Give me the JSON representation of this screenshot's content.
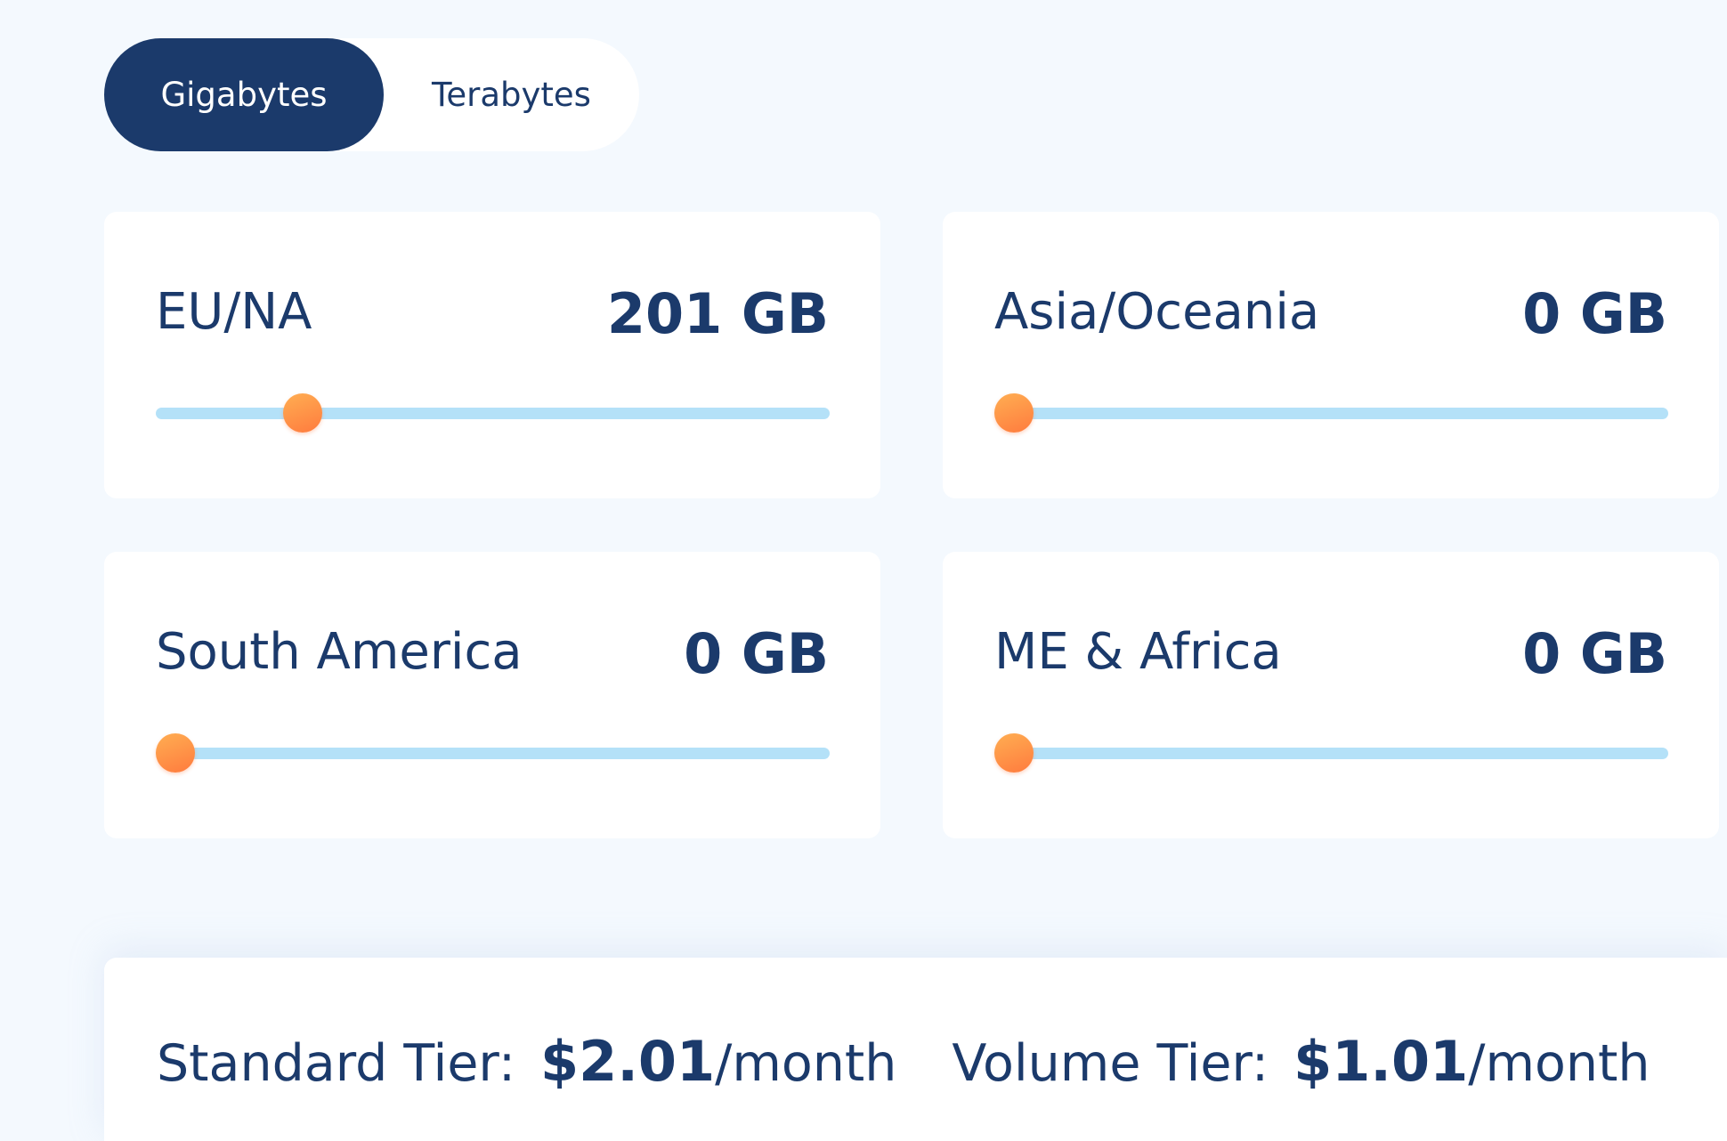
{
  "toggle": {
    "options": [
      "Gigabytes",
      "Terabytes"
    ],
    "selected": 0
  },
  "slider_range": [
    0,
    1000
  ],
  "cards": [
    {
      "label": "EU/NA",
      "value": 201,
      "value_label": "201 GB"
    },
    {
      "label": "Asia/Oceania",
      "value": 0,
      "value_label": "0 GB"
    },
    {
      "label": "South America",
      "value": 0,
      "value_label": "0 GB"
    },
    {
      "label": "ME & Africa",
      "value": 0,
      "value_label": "0 GB"
    }
  ],
  "pricing": [
    {
      "label": "Standard Tier:",
      "price": "$2.01",
      "period": "/month"
    },
    {
      "label": "Volume Tier:",
      "price": "$1.01",
      "period": "/month"
    }
  ]
}
